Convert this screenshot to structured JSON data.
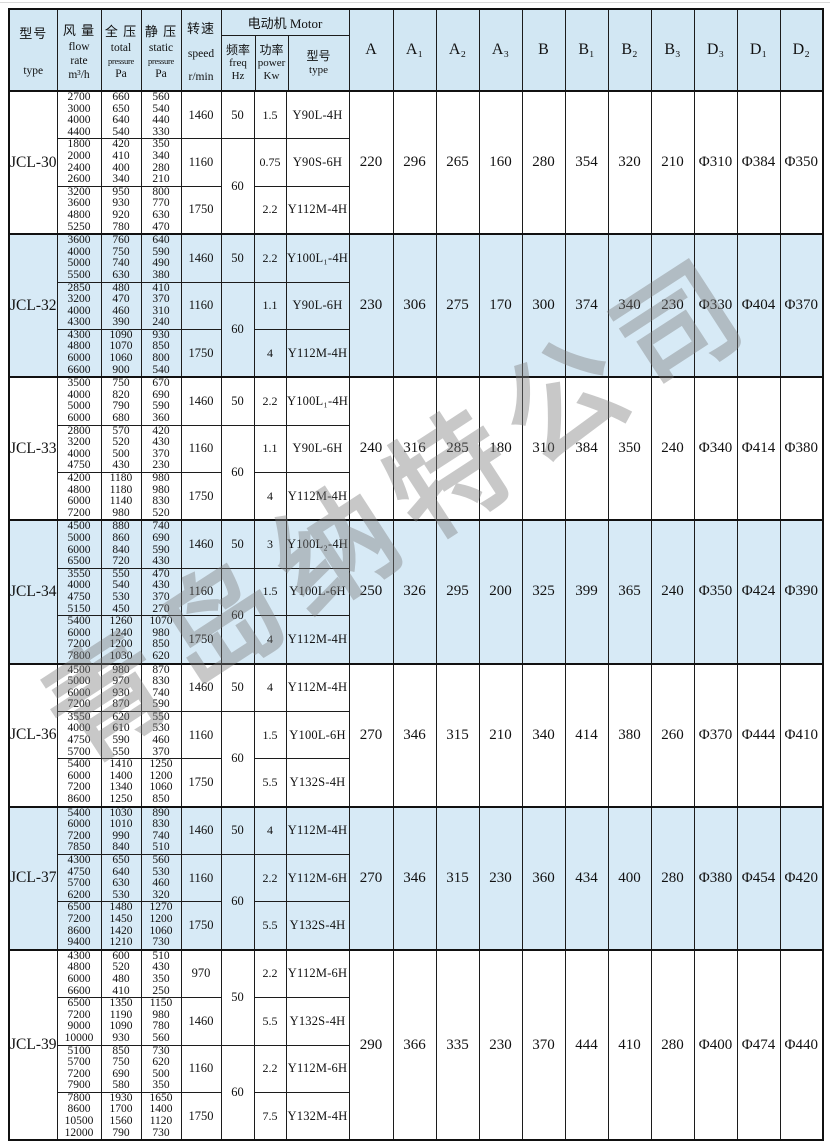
{
  "header": {
    "model_cn": "型号",
    "model_en": "type",
    "flow_cn": "风 量",
    "flow_en1": "flow",
    "flow_en2": "rate",
    "flow_unit": "m³/h",
    "total_cn": "全 压",
    "total_en1": "total",
    "total_en2": "pressure",
    "total_unit": "Pa",
    "static_cn": "静 压",
    "static_en1": "static",
    "static_en2": "pressure",
    "static_unit": "Pa",
    "speed_cn": "转速",
    "speed_en": "speed",
    "speed_unit": "r/min",
    "motor_group": "电动机 Motor",
    "freq_cn": "频率",
    "freq_en": "freq",
    "freq_unit": "Hz",
    "power_cn": "功率",
    "power_en": "power",
    "power_unit": "Kw",
    "mtype_cn": "型号",
    "mtype_en": "type",
    "dims": [
      "A",
      "A₁",
      "A₂",
      "A₃",
      "B",
      "B₁",
      "B₂",
      "B₃",
      "D₃",
      "D₁",
      "D₂"
    ]
  },
  "watermark": "青岛纳特公司",
  "colors": {
    "band_blue": "#d7eaf6",
    "header_blue": "#d2e7f3",
    "border": "#1c1c1c",
    "watermark_gray": "#7d7d7d"
  },
  "models": [
    {
      "name": "JCL-30",
      "groups": [
        {
          "flow": [
            "2700",
            "3000",
            "4000",
            "4400"
          ],
          "total": [
            "660",
            "650",
            "640",
            "540"
          ],
          "static_p": [
            "560",
            "540",
            "440",
            "330"
          ],
          "speed": "1460",
          "freq": "50",
          "freq_span": 1,
          "power": "1.5",
          "motor": "Y90L-4H"
        },
        {
          "flow": [
            "1800",
            "2000",
            "2400",
            "2600"
          ],
          "total": [
            "420",
            "410",
            "400",
            "340"
          ],
          "static_p": [
            "350",
            "340",
            "280",
            "210"
          ],
          "speed": "1160",
          "freq": "60",
          "freq_span": 2,
          "power": "0.75",
          "motor": "Y90S-6H"
        },
        {
          "flow": [
            "3200",
            "3600",
            "4800",
            "5250"
          ],
          "total": [
            "950",
            "930",
            "920",
            "780"
          ],
          "static_p": [
            "800",
            "770",
            "630",
            "470"
          ],
          "speed": "1750",
          "freq": null,
          "power": "2.2",
          "motor": "Y112M-4H"
        }
      ],
      "dims": [
        "220",
        "296",
        "265",
        "160",
        "280",
        "354",
        "320",
        "210",
        "Φ310",
        "Φ384",
        "Φ350"
      ]
    },
    {
      "name": "JCL-32",
      "groups": [
        {
          "flow": [
            "3600",
            "4000",
            "5000",
            "5500"
          ],
          "total": [
            "760",
            "750",
            "740",
            "630"
          ],
          "static_p": [
            "640",
            "590",
            "490",
            "380"
          ],
          "speed": "1460",
          "freq": "50",
          "freq_span": 1,
          "power": "2.2",
          "motor": "Y100L₁-4H"
        },
        {
          "flow": [
            "2850",
            "3200",
            "4000",
            "4300"
          ],
          "total": [
            "480",
            "470",
            "460",
            "390"
          ],
          "static_p": [
            "410",
            "370",
            "310",
            "240"
          ],
          "speed": "1160",
          "freq": "60",
          "freq_span": 2,
          "power": "1.1",
          "motor": "Y90L-6H"
        },
        {
          "flow": [
            "4300",
            "4800",
            "6000",
            "6600"
          ],
          "total": [
            "1090",
            "1070",
            "1060",
            "900"
          ],
          "static_p": [
            "930",
            "850",
            "800",
            "540"
          ],
          "speed": "1750",
          "freq": null,
          "power": "4",
          "motor": "Y112M-4H"
        }
      ],
      "dims": [
        "230",
        "306",
        "275",
        "170",
        "300",
        "374",
        "340",
        "230",
        "Φ330",
        "Φ404",
        "Φ370"
      ]
    },
    {
      "name": "JCL-33",
      "groups": [
        {
          "flow": [
            "3500",
            "4000",
            "5000",
            "6000"
          ],
          "total": [
            "750",
            "820",
            "790",
            "680"
          ],
          "static_p": [
            "670",
            "690",
            "590",
            "360"
          ],
          "speed": "1460",
          "freq": "50",
          "freq_span": 1,
          "power": "2.2",
          "motor": "Y100L₁-4H"
        },
        {
          "flow": [
            "2800",
            "3200",
            "4000",
            "4750"
          ],
          "total": [
            "570",
            "520",
            "500",
            "430"
          ],
          "static_p": [
            "420",
            "430",
            "370",
            "230"
          ],
          "speed": "1160",
          "freq": "60",
          "freq_span": 2,
          "power": "1.1",
          "motor": "Y90L-6H"
        },
        {
          "flow": [
            "4200",
            "4800",
            "6000",
            "7200"
          ],
          "total": [
            "1180",
            "1180",
            "1140",
            "980"
          ],
          "static_p": [
            "980",
            "980",
            "830",
            "520"
          ],
          "speed": "1750",
          "freq": null,
          "power": "4",
          "motor": "Y112M-4H"
        }
      ],
      "dims": [
        "240",
        "316",
        "285",
        "180",
        "310",
        "384",
        "350",
        "240",
        "Φ340",
        "Φ414",
        "Φ380"
      ]
    },
    {
      "name": "JCL-34",
      "groups": [
        {
          "flow": [
            "4500",
            "5000",
            "6000",
            "6500"
          ],
          "total": [
            "880",
            "860",
            "840",
            "720"
          ],
          "static_p": [
            "740",
            "690",
            "590",
            "430"
          ],
          "speed": "1460",
          "freq": "50",
          "freq_span": 1,
          "power": "3",
          "motor": "Y100L₂-4H"
        },
        {
          "flow": [
            "3550",
            "4000",
            "4750",
            "5150"
          ],
          "total": [
            "550",
            "540",
            "530",
            "450"
          ],
          "static_p": [
            "470",
            "430",
            "370",
            "270"
          ],
          "speed": "1160",
          "freq": "60",
          "freq_span": 2,
          "power": "1.5",
          "motor": "Y100L-6H"
        },
        {
          "flow": [
            "5400",
            "6000",
            "7200",
            "7800"
          ],
          "total": [
            "1260",
            "1240",
            "1200",
            "1030"
          ],
          "static_p": [
            "1070",
            "980",
            "850",
            "620"
          ],
          "speed": "1750",
          "freq": null,
          "power": "4",
          "motor": "Y112M-4H"
        }
      ],
      "dims": [
        "250",
        "326",
        "295",
        "200",
        "325",
        "399",
        "365",
        "240",
        "Φ350",
        "Φ424",
        "Φ390"
      ]
    },
    {
      "name": "JCL-36",
      "groups": [
        {
          "flow": [
            "4500",
            "5000",
            "6000",
            "7200"
          ],
          "total": [
            "980",
            "970",
            "930",
            "870"
          ],
          "static_p": [
            "870",
            "830",
            "740",
            "590"
          ],
          "speed": "1460",
          "freq": "50",
          "freq_span": 1,
          "power": "4",
          "motor": "Y112M-4H"
        },
        {
          "flow": [
            "3550",
            "4000",
            "4750",
            "5700"
          ],
          "total": [
            "620",
            "610",
            "590",
            "550"
          ],
          "static_p": [
            "550",
            "530",
            "460",
            "370"
          ],
          "speed": "1160",
          "freq": "60",
          "freq_span": 2,
          "power": "1.5",
          "motor": "Y100L-6H"
        },
        {
          "flow": [
            "5400",
            "6000",
            "7200",
            "8600"
          ],
          "total": [
            "1410",
            "1400",
            "1340",
            "1250"
          ],
          "static_p": [
            "1250",
            "1200",
            "1060",
            "850"
          ],
          "speed": "1750",
          "freq": null,
          "power": "5.5",
          "motor": "Y132S-4H"
        }
      ],
      "dims": [
        "270",
        "346",
        "315",
        "210",
        "340",
        "414",
        "380",
        "260",
        "Φ370",
        "Φ444",
        "Φ410"
      ]
    },
    {
      "name": "JCL-37",
      "groups": [
        {
          "flow": [
            "5400",
            "6000",
            "7200",
            "7850"
          ],
          "total": [
            "1030",
            "1010",
            "990",
            "840"
          ],
          "static_p": [
            "890",
            "830",
            "740",
            "510"
          ],
          "speed": "1460",
          "freq": "50",
          "freq_span": 1,
          "power": "4",
          "motor": "Y112M-4H"
        },
        {
          "flow": [
            "4300",
            "4750",
            "5700",
            "6200"
          ],
          "total": [
            "650",
            "640",
            "630",
            "530"
          ],
          "static_p": [
            "560",
            "530",
            "460",
            "320"
          ],
          "speed": "1160",
          "freq": "60",
          "freq_span": 2,
          "power": "2.2",
          "motor": "Y112M-6H"
        },
        {
          "flow": [
            "6500",
            "7200",
            "8600",
            "9400"
          ],
          "total": [
            "1480",
            "1450",
            "1420",
            "1210"
          ],
          "static_p": [
            "1270",
            "1200",
            "1060",
            "730"
          ],
          "speed": "1750",
          "freq": null,
          "power": "5.5",
          "motor": "Y132S-4H"
        }
      ],
      "dims": [
        "270",
        "346",
        "315",
        "230",
        "360",
        "434",
        "400",
        "280",
        "Φ380",
        "Φ454",
        "Φ420"
      ]
    },
    {
      "name": "JCL-39",
      "groups": [
        {
          "flow": [
            "4300",
            "4800",
            "6000",
            "6600"
          ],
          "total": [
            "600",
            "520",
            "480",
            "410"
          ],
          "static_p": [
            "510",
            "430",
            "350",
            "250"
          ],
          "speed": "970",
          "freq": "50",
          "freq_span": 2,
          "power": "2.2",
          "motor": "Y112M-6H"
        },
        {
          "flow": [
            "6500",
            "7200",
            "9000",
            "10000"
          ],
          "total": [
            "1350",
            "1190",
            "1090",
            "930"
          ],
          "static_p": [
            "1150",
            "980",
            "780",
            "560"
          ],
          "speed": "1460",
          "freq": null,
          "power": "5.5",
          "motor": "Y132S-4H"
        },
        {
          "flow": [
            "5100",
            "5700",
            "7200",
            "7900"
          ],
          "total": [
            "850",
            "750",
            "690",
            "580"
          ],
          "static_p": [
            "730",
            "620",
            "500",
            "350"
          ],
          "speed": "1160",
          "freq": "60",
          "freq_span": 2,
          "power": "2.2",
          "motor": "Y112M-6H"
        },
        {
          "flow": [
            "7800",
            "8600",
            "10500",
            "12000"
          ],
          "total": [
            "1930",
            "1700",
            "1560",
            "790"
          ],
          "static_p": [
            "1650",
            "1400",
            "1120",
            "730"
          ],
          "speed": "1750",
          "freq": null,
          "power": "7.5",
          "motor": "Y132M-4H"
        }
      ],
      "dims": [
        "290",
        "366",
        "335",
        "230",
        "370",
        "444",
        "410",
        "280",
        "Φ400",
        "Φ474",
        "Φ440"
      ]
    }
  ]
}
